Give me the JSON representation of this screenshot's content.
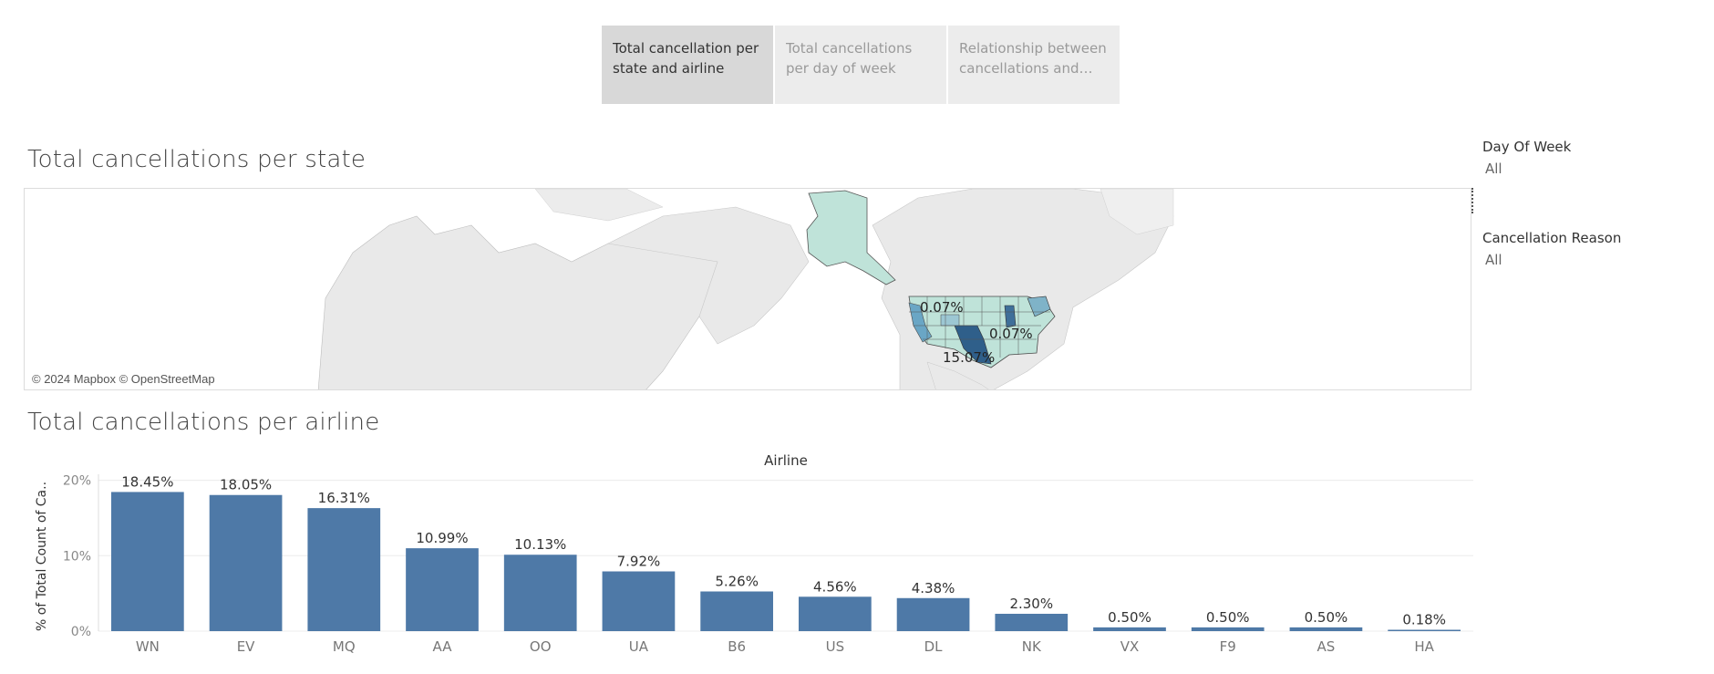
{
  "tabs": [
    {
      "label": "Total cancellation per state and airline",
      "active": true
    },
    {
      "label": "Total cancellations per day of week",
      "active": false
    },
    {
      "label": "Relationship between cancellations and tot..",
      "active": false
    }
  ],
  "state_section": {
    "title": "Total cancellations per state",
    "attribution": "© 2024 Mapbox © OpenStreetMap",
    "labels": [
      "0.07%",
      "0.07%",
      "15.07%"
    ]
  },
  "filters": [
    {
      "title": "Day Of Week",
      "value": "All"
    },
    {
      "title": "Cancellation Reason",
      "value": "All"
    }
  ],
  "airline_section": {
    "title": "Total cancellations per airline"
  },
  "chart_data": {
    "type": "bar",
    "title": "Airline",
    "xlabel": "",
    "ylabel": "% of Total Count of Ca..",
    "categories": [
      "WN",
      "EV",
      "MQ",
      "AA",
      "OO",
      "UA",
      "B6",
      "US",
      "DL",
      "NK",
      "VX",
      "F9",
      "AS",
      "HA"
    ],
    "values": [
      18.45,
      18.05,
      16.31,
      10.99,
      10.13,
      7.92,
      5.26,
      4.56,
      4.38,
      2.3,
      0.5,
      0.5,
      0.5,
      0.18
    ],
    "data_labels": [
      "18.45%",
      "18.05%",
      "16.31%",
      "10.99%",
      "10.13%",
      "7.92%",
      "5.26%",
      "4.56%",
      "4.38%",
      "2.30%",
      "0.50%",
      "0.50%",
      "0.50%",
      "0.18%"
    ],
    "yticks": [
      0,
      10,
      20
    ],
    "ytick_labels": [
      "0%",
      "10%",
      "20%"
    ],
    "ylim": [
      0,
      20.8
    ],
    "grid": true,
    "color": "#4e79a7"
  },
  "colors": {
    "bar": "#4e79a7",
    "map_land": "#e9e9e9",
    "state_light": "#bfe3d9",
    "state_mid": "#7fb3c8",
    "state_dark": "#2f5f8a"
  }
}
